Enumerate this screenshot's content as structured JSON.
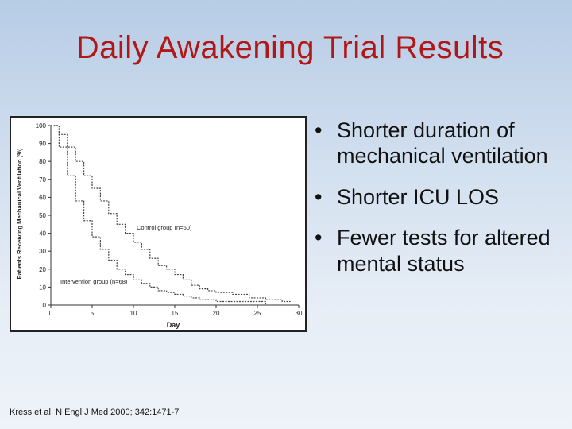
{
  "slide": {
    "title": "Daily Awakening Trial Results",
    "citation": "Kress et al. N Engl J Med 2000; 342:1471-7"
  },
  "bullets": [
    "Shorter duration of mechanical ventilation",
    "Shorter ICU LOS",
    "Fewer tests for altered mental status"
  ],
  "chart_data": {
    "type": "line",
    "title": "",
    "xlabel": "Day",
    "ylabel": "Patients Receiving Mechanical Ventilation (%)",
    "xlim": [
      0,
      30
    ],
    "ylim": [
      0,
      100
    ],
    "xticks": [
      0,
      5,
      10,
      15,
      20,
      25,
      30
    ],
    "yticks": [
      0,
      10,
      20,
      30,
      40,
      50,
      60,
      70,
      80,
      90,
      100
    ],
    "grid": false,
    "series": [
      {
        "name": "Control group (n=60)",
        "x": [
          0,
          1,
          2,
          3,
          4,
          5,
          6,
          7,
          8,
          9,
          10,
          11,
          12,
          13,
          14,
          15,
          16,
          17,
          18,
          19,
          20,
          22,
          24,
          26,
          28,
          29
        ],
        "y": [
          100,
          95,
          88,
          80,
          72,
          65,
          58,
          51,
          45,
          40,
          35,
          31,
          26,
          22,
          20,
          17,
          14,
          11,
          9,
          8,
          7,
          6,
          4,
          3,
          2,
          2
        ]
      },
      {
        "name": "Intervention group (n=68)",
        "x": [
          0,
          1,
          2,
          3,
          4,
          5,
          6,
          7,
          8,
          9,
          10,
          11,
          12,
          13,
          14,
          15,
          16,
          17,
          18,
          20,
          24,
          26
        ],
        "y": [
          100,
          88,
          72,
          58,
          47,
          38,
          31,
          25,
          20,
          17,
          14,
          12,
          10,
          8,
          7,
          6,
          5,
          4,
          3,
          2,
          2,
          0
        ]
      }
    ],
    "annotations": [
      "Control group (n=60)",
      "Intervention group (n=68)"
    ]
  }
}
